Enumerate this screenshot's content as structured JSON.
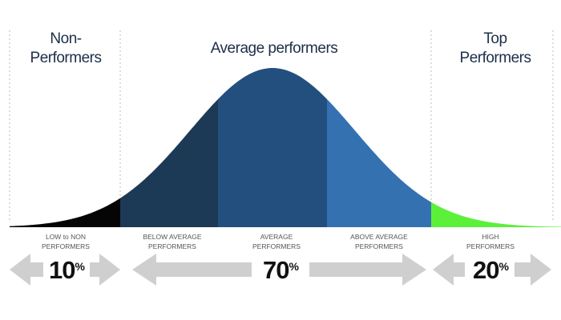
{
  "headers": [
    {
      "lines": [
        "Non-",
        "Performers"
      ]
    },
    {
      "lines": [
        "Average performers"
      ]
    },
    {
      "lines": [
        "Top",
        "Performers"
      ]
    }
  ],
  "segments": [
    {
      "lines": [
        "LOW to NON",
        "PERFORMERS"
      ]
    },
    {
      "lines": [
        "BELOW AVERAGE",
        "PERFORMERS"
      ]
    },
    {
      "lines": [
        "AVERAGE",
        "PERFORMERS"
      ]
    },
    {
      "lines": [
        "ABOVE AVERAGE",
        "PERFORMERS"
      ]
    },
    {
      "lines": [
        "HIGH",
        "PERFORMERS"
      ]
    }
  ],
  "shares": [
    {
      "value": 10,
      "unit": "%"
    },
    {
      "value": 70,
      "unit": "%"
    },
    {
      "value": 20,
      "unit": "%"
    }
  ]
}
